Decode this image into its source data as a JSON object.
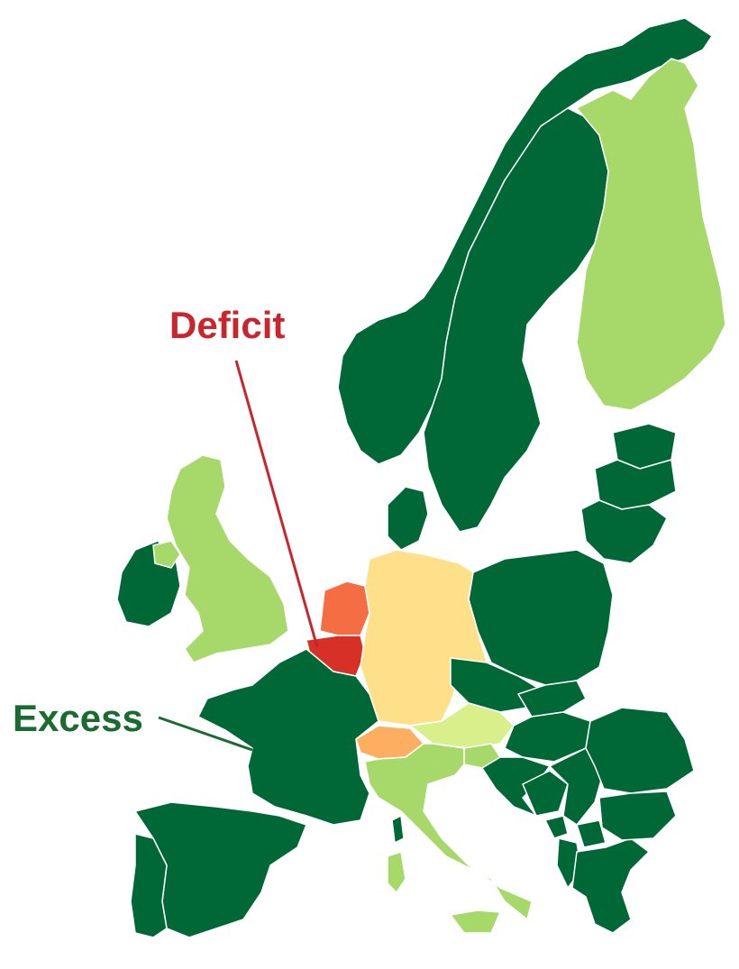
{
  "labels": {
    "deficit": "Deficit",
    "excess": "Excess"
  },
  "colors": {
    "excess_strong": "#006837",
    "excess_light": "#a6d96a",
    "excess_pale": "#d9ef8b",
    "neutral": "#fee08b",
    "deficit_mild": "#fdae61",
    "deficit_moderate": "#f46d43",
    "deficit_strong": "#d73027",
    "deficit_label": "#c8252c",
    "excess_label": "#1a6b30"
  },
  "legend_scale": [
    "deficit",
    "excess"
  ]
}
